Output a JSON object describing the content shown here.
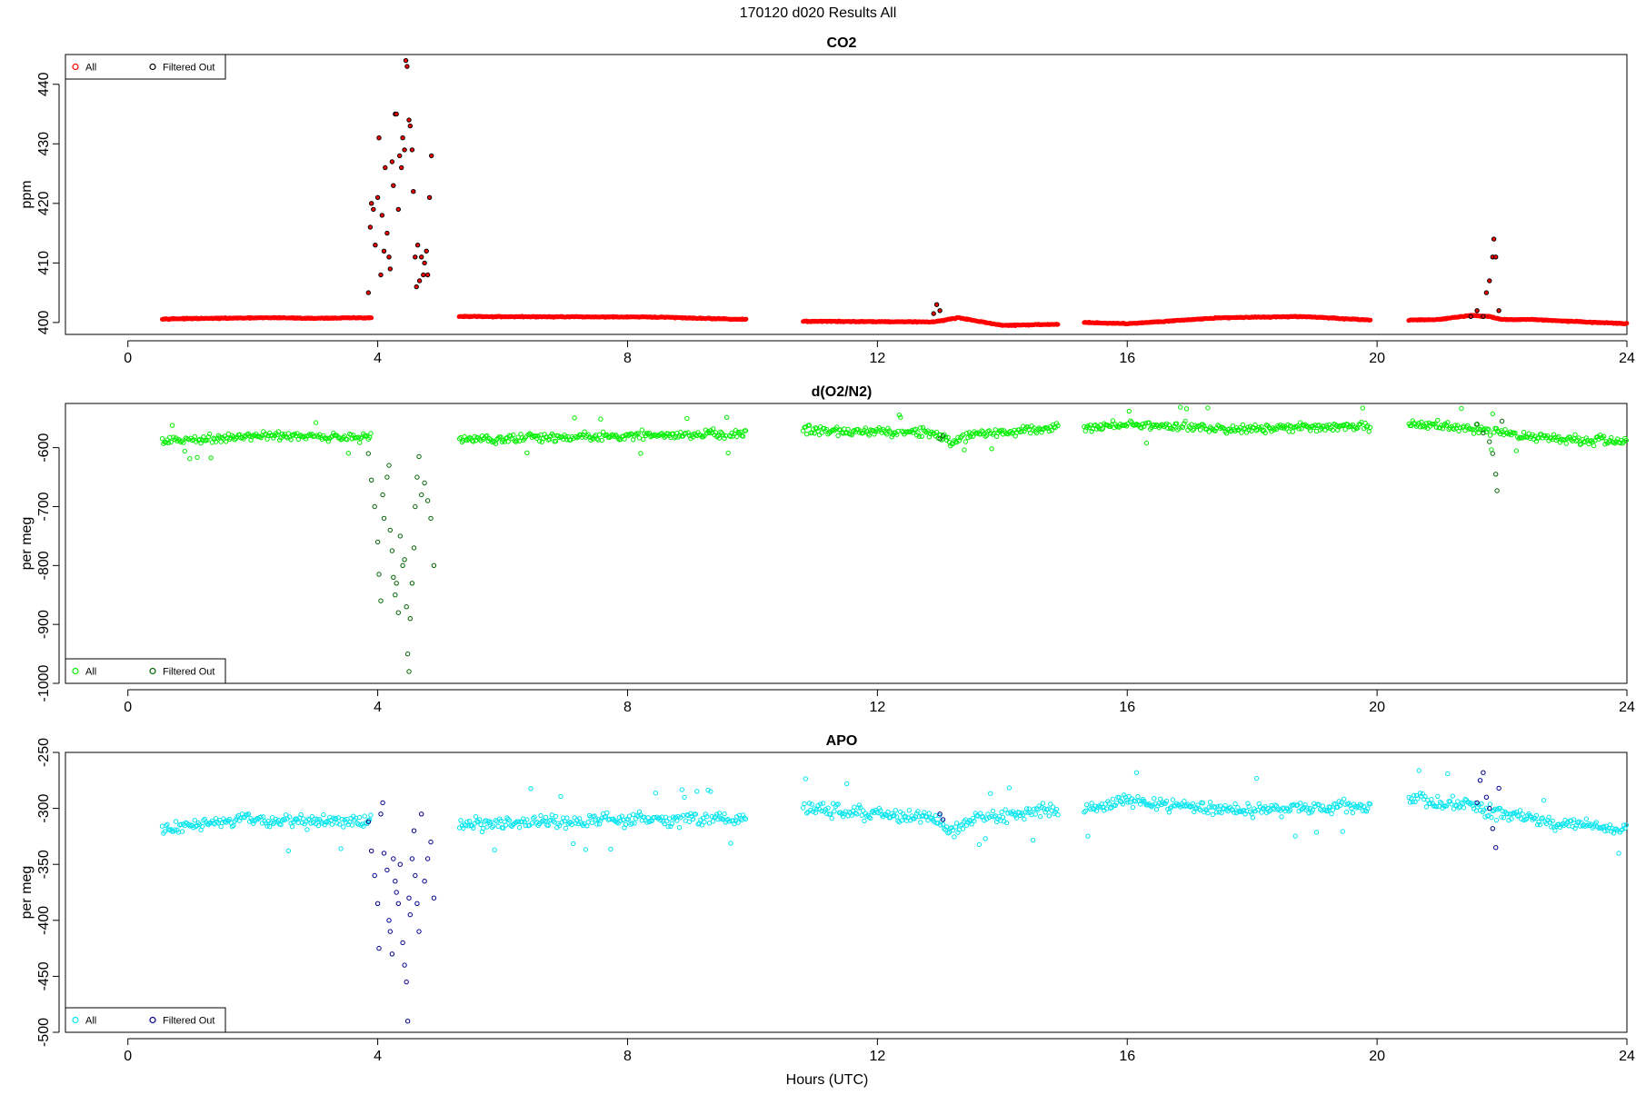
{
  "figure": {
    "title": "170120   d020   Results All",
    "xlabel": "Hours (UTC)"
  },
  "chart_data": [
    {
      "type": "scatter",
      "title": "CO2",
      "ylabel": "ppm",
      "xlim": [
        -1,
        24
      ],
      "ylim": [
        398,
        445
      ],
      "x_ticks": [
        0,
        4,
        8,
        12,
        16,
        20,
        24
      ],
      "y_ticks": [
        400,
        410,
        420,
        430,
        440
      ],
      "grid": false,
      "legend": {
        "placement": "top-left",
        "entries": [
          "All",
          "Filtered Out"
        ]
      },
      "colors": {
        "all": "#ff0000",
        "filtered": "#000000"
      },
      "baseline": [
        [
          0.55,
          400.6
        ],
        [
          2.4,
          400.8
        ],
        [
          2.9,
          400.7
        ],
        [
          3.9,
          400.8
        ],
        [
          5.3,
          401.0
        ],
        [
          8.5,
          400.9
        ],
        [
          9.9,
          400.5
        ],
        [
          10.8,
          400.2
        ],
        [
          12.9,
          400.1
        ],
        [
          13.3,
          400.8
        ],
        [
          14.0,
          399.5
        ],
        [
          14.9,
          399.7
        ],
        [
          15.3,
          400.0
        ],
        [
          16.0,
          399.8
        ],
        [
          17.5,
          400.8
        ],
        [
          18.8,
          401.0
        ],
        [
          19.9,
          400.4
        ],
        [
          20.5,
          400.4
        ],
        [
          21.0,
          400.5
        ],
        [
          21.5,
          401.2
        ],
        [
          21.8,
          401.0
        ],
        [
          22.0,
          400.5
        ],
        [
          22.5,
          400.5
        ],
        [
          23.5,
          400.0
        ],
        [
          24.0,
          399.8
        ]
      ],
      "gaps": [
        [
          3.9,
          5.3
        ],
        [
          9.9,
          10.8
        ],
        [
          14.9,
          15.3
        ],
        [
          19.9,
          20.5
        ]
      ],
      "filtered_points": [
        [
          3.85,
          405
        ],
        [
          3.88,
          416
        ],
        [
          3.9,
          420
        ],
        [
          3.93,
          419
        ],
        [
          3.96,
          413
        ],
        [
          4.0,
          421
        ],
        [
          4.02,
          431
        ],
        [
          4.05,
          408
        ],
        [
          4.07,
          418
        ],
        [
          4.1,
          412
        ],
        [
          4.12,
          426
        ],
        [
          4.15,
          415
        ],
        [
          4.18,
          411
        ],
        [
          4.2,
          409
        ],
        [
          4.23,
          427
        ],
        [
          4.25,
          423
        ],
        [
          4.28,
          435
        ],
        [
          4.3,
          435
        ],
        [
          4.33,
          419
        ],
        [
          4.35,
          428
        ],
        [
          4.38,
          426
        ],
        [
          4.4,
          431
        ],
        [
          4.43,
          429
        ],
        [
          4.45,
          444
        ],
        [
          4.47,
          443
        ],
        [
          4.5,
          434
        ],
        [
          4.52,
          433
        ],
        [
          4.55,
          429
        ],
        [
          4.57,
          422
        ],
        [
          4.6,
          411
        ],
        [
          4.62,
          406
        ],
        [
          4.64,
          413
        ],
        [
          4.67,
          407
        ],
        [
          4.7,
          411
        ],
        [
          4.73,
          408
        ],
        [
          4.75,
          410
        ],
        [
          4.78,
          412
        ],
        [
          4.8,
          408
        ],
        [
          4.83,
          421
        ],
        [
          4.86,
          428
        ],
        [
          12.9,
          401.5
        ],
        [
          12.95,
          403
        ],
        [
          13.0,
          402
        ],
        [
          21.5,
          401
        ],
        [
          21.6,
          402
        ],
        [
          21.7,
          401
        ],
        [
          21.75,
          405
        ],
        [
          21.8,
          407
        ],
        [
          21.85,
          411
        ],
        [
          21.87,
          414
        ],
        [
          21.9,
          411
        ],
        [
          21.95,
          402
        ]
      ]
    },
    {
      "type": "scatter",
      "title": "d(O2/N2)",
      "ylabel": "per meg",
      "xlim": [
        -1,
        24
      ],
      "ylim": [
        -1000,
        -525
      ],
      "x_ticks": [
        0,
        4,
        8,
        12,
        16,
        20,
        24
      ],
      "y_ticks": [
        -600,
        -700,
        -800,
        -900,
        -1000
      ],
      "grid": false,
      "legend": {
        "placement": "bottom-left",
        "entries": [
          "All",
          "Filtered Out"
        ]
      },
      "colors": {
        "all": "#00ee00",
        "filtered": "#006400"
      },
      "baseline": [
        [
          0.55,
          -590
        ],
        [
          2.0,
          -580
        ],
        [
          3.9,
          -582
        ],
        [
          5.3,
          -585
        ],
        [
          8.0,
          -580
        ],
        [
          9.9,
          -575
        ],
        [
          10.8,
          -570
        ],
        [
          12.9,
          -575
        ],
        [
          13.2,
          -590
        ],
        [
          13.5,
          -578
        ],
        [
          14.9,
          -565
        ],
        [
          15.3,
          -565
        ],
        [
          16.0,
          -560
        ],
        [
          17.5,
          -568
        ],
        [
          19.9,
          -565
        ],
        [
          20.5,
          -560
        ],
        [
          21.5,
          -568
        ],
        [
          22.0,
          -575
        ],
        [
          23.0,
          -585
        ],
        [
          24.0,
          -590
        ]
      ],
      "gaps": [
        [
          3.9,
          5.3
        ],
        [
          9.9,
          10.8
        ],
        [
          14.9,
          15.3
        ],
        [
          19.9,
          20.5
        ]
      ],
      "filtered_points": [
        [
          3.85,
          -610
        ],
        [
          3.9,
          -655
        ],
        [
          3.95,
          -700
        ],
        [
          4.0,
          -760
        ],
        [
          4.02,
          -815
        ],
        [
          4.05,
          -860
        ],
        [
          4.08,
          -680
        ],
        [
          4.1,
          -720
        ],
        [
          4.15,
          -650
        ],
        [
          4.18,
          -630
        ],
        [
          4.2,
          -740
        ],
        [
          4.23,
          -775
        ],
        [
          4.25,
          -820
        ],
        [
          4.28,
          -850
        ],
        [
          4.3,
          -830
        ],
        [
          4.33,
          -880
        ],
        [
          4.36,
          -750
        ],
        [
          4.4,
          -800
        ],
        [
          4.43,
          -790
        ],
        [
          4.46,
          -870
        ],
        [
          4.48,
          -950
        ],
        [
          4.5,
          -980
        ],
        [
          4.52,
          -890
        ],
        [
          4.55,
          -830
        ],
        [
          4.58,
          -770
        ],
        [
          4.6,
          -700
        ],
        [
          4.63,
          -650
        ],
        [
          4.66,
          -615
        ],
        [
          4.7,
          -680
        ],
        [
          4.75,
          -660
        ],
        [
          4.8,
          -690
        ],
        [
          4.85,
          -720
        ],
        [
          4.9,
          -800
        ],
        [
          13.0,
          -585
        ],
        [
          13.05,
          -580
        ],
        [
          21.6,
          -560
        ],
        [
          21.7,
          -575
        ],
        [
          21.8,
          -590
        ],
        [
          21.85,
          -610
        ],
        [
          21.9,
          -645
        ],
        [
          21.92,
          -673
        ],
        [
          22.0,
          -555
        ]
      ]
    },
    {
      "type": "scatter",
      "title": "APO",
      "ylabel": "per meg",
      "xlim": [
        -1,
        24
      ],
      "ylim": [
        -500,
        -250
      ],
      "x_ticks": [
        0,
        4,
        8,
        12,
        16,
        20,
        24
      ],
      "y_ticks": [
        -250,
        -300,
        -350,
        -400,
        -450,
        -500
      ],
      "grid": false,
      "legend": {
        "placement": "bottom-left",
        "entries": [
          "All",
          "Filtered Out"
        ]
      },
      "colors": {
        "all": "#00e5ee",
        "filtered": "#00008b"
      },
      "baseline": [
        [
          0.55,
          -318
        ],
        [
          2.0,
          -310
        ],
        [
          3.9,
          -313
        ],
        [
          5.3,
          -315
        ],
        [
          8.0,
          -310
        ],
        [
          9.9,
          -308
        ],
        [
          10.8,
          -300
        ],
        [
          12.9,
          -308
        ],
        [
          13.2,
          -322
        ],
        [
          13.5,
          -310
        ],
        [
          14.9,
          -300
        ],
        [
          15.3,
          -300
        ],
        [
          16.0,
          -292
        ],
        [
          17.5,
          -302
        ],
        [
          19.9,
          -298
        ],
        [
          20.5,
          -290
        ],
        [
          21.5,
          -298
        ],
        [
          22.0,
          -305
        ],
        [
          23.0,
          -315
        ],
        [
          24.0,
          -318
        ]
      ],
      "gaps": [
        [
          3.9,
          5.3
        ],
        [
          9.9,
          10.8
        ],
        [
          14.9,
          15.3
        ],
        [
          19.9,
          20.5
        ]
      ],
      "filtered_points": [
        [
          3.85,
          -312
        ],
        [
          3.9,
          -338
        ],
        [
          3.95,
          -360
        ],
        [
          4.0,
          -385
        ],
        [
          4.02,
          -425
        ],
        [
          4.05,
          -305
        ],
        [
          4.08,
          -295
        ],
        [
          4.1,
          -340
        ],
        [
          4.15,
          -355
        ],
        [
          4.18,
          -400
        ],
        [
          4.2,
          -410
        ],
        [
          4.23,
          -430
        ],
        [
          4.25,
          -345
        ],
        [
          4.28,
          -365
        ],
        [
          4.3,
          -375
        ],
        [
          4.33,
          -385
        ],
        [
          4.36,
          -350
        ],
        [
          4.4,
          -420
        ],
        [
          4.43,
          -440
        ],
        [
          4.46,
          -455
        ],
        [
          4.48,
          -490
        ],
        [
          4.5,
          -380
        ],
        [
          4.52,
          -395
        ],
        [
          4.55,
          -345
        ],
        [
          4.58,
          -320
        ],
        [
          4.6,
          -360
        ],
        [
          4.63,
          -385
        ],
        [
          4.66,
          -410
        ],
        [
          4.7,
          -305
        ],
        [
          4.75,
          -365
        ],
        [
          4.8,
          -345
        ],
        [
          4.85,
          -330
        ],
        [
          4.9,
          -380
        ],
        [
          13.0,
          -305
        ],
        [
          13.05,
          -310
        ],
        [
          21.6,
          -295
        ],
        [
          21.65,
          -275
        ],
        [
          21.7,
          -268
        ],
        [
          21.75,
          -290
        ],
        [
          21.8,
          -300
        ],
        [
          21.85,
          -318
        ],
        [
          21.9,
          -335
        ],
        [
          21.95,
          -282
        ]
      ]
    }
  ]
}
